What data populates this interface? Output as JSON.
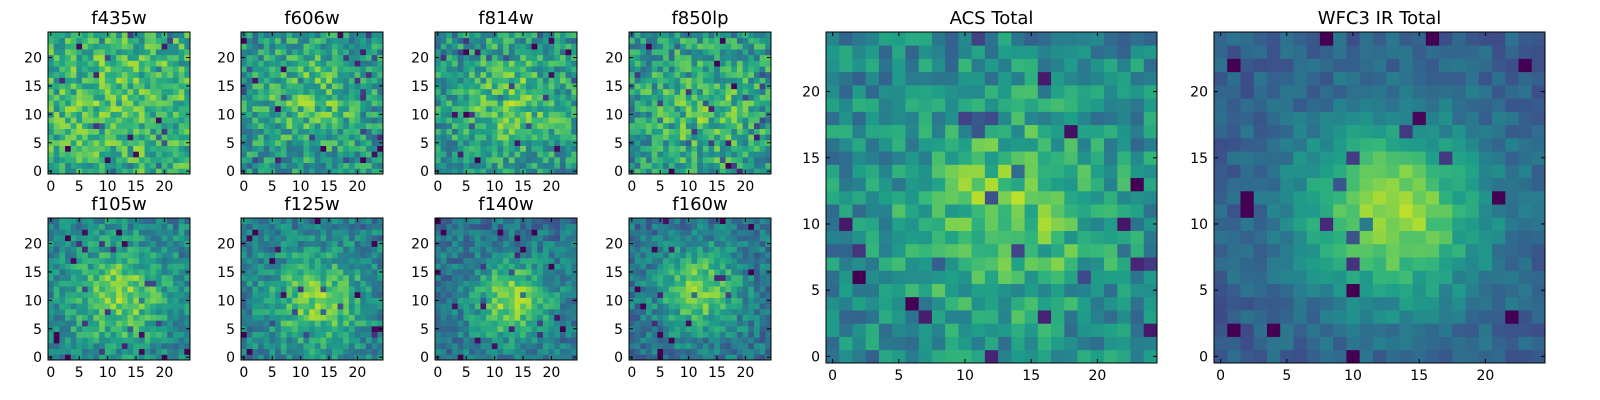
{
  "figure": {
    "title": ""
  },
  "chart_data": [
    {
      "type": "heatmap",
      "title": "f435w",
      "grid_size": 25,
      "xlim": [
        -0.5,
        24.5
      ],
      "ylim": [
        -0.5,
        24.5
      ],
      "xticks": [
        0,
        5,
        10,
        15,
        20
      ],
      "yticks": [
        0,
        5,
        10,
        15,
        20
      ],
      "colormap": "viridis",
      "value_range": [
        0,
        1
      ],
      "pattern": {
        "peak": [
          12,
          13
        ],
        "sigma": 10,
        "amplitude": 0.1,
        "base": 0.6,
        "noise": 0.2,
        "seed": 11
      }
    },
    {
      "type": "heatmap",
      "title": "f606w",
      "grid_size": 25,
      "xlim": [
        -0.5,
        24.5
      ],
      "ylim": [
        -0.5,
        24.5
      ],
      "xticks": [
        0,
        5,
        10,
        15,
        20
      ],
      "yticks": [
        0,
        5,
        10,
        15,
        20
      ],
      "colormap": "viridis",
      "value_range": [
        0,
        1
      ],
      "pattern": {
        "peak": [
          12,
          13
        ],
        "sigma": 7,
        "amplitude": 0.2,
        "base": 0.5,
        "noise": 0.2,
        "seed": 22
      }
    },
    {
      "type": "heatmap",
      "title": "f814w",
      "grid_size": 25,
      "xlim": [
        -0.5,
        24.5
      ],
      "ylim": [
        -0.5,
        24.5
      ],
      "xticks": [
        0,
        5,
        10,
        15,
        20
      ],
      "yticks": [
        0,
        5,
        10,
        15,
        20
      ],
      "colormap": "viridis",
      "value_range": [
        0,
        1
      ],
      "pattern": {
        "peak": [
          13,
          12
        ],
        "sigma": 7,
        "amplitude": 0.22,
        "base": 0.5,
        "noise": 0.2,
        "seed": 33
      }
    },
    {
      "type": "heatmap",
      "title": "f850lp",
      "grid_size": 25,
      "xlim": [
        -0.5,
        24.5
      ],
      "ylim": [
        -0.5,
        24.5
      ],
      "xticks": [
        0,
        5,
        10,
        15,
        20
      ],
      "yticks": [
        0,
        5,
        10,
        15,
        20
      ],
      "colormap": "viridis",
      "value_range": [
        0,
        1
      ],
      "pattern": {
        "peak": [
          13,
          11
        ],
        "sigma": 8,
        "amplitude": 0.18,
        "base": 0.5,
        "noise": 0.22,
        "seed": 44
      }
    },
    {
      "type": "heatmap",
      "title": "f105w",
      "grid_size": 25,
      "xlim": [
        -0.5,
        24.5
      ],
      "ylim": [
        -0.5,
        24.5
      ],
      "xticks": [
        0,
        5,
        10,
        15,
        20
      ],
      "yticks": [
        0,
        5,
        10,
        15,
        20
      ],
      "colormap": "viridis",
      "value_range": [
        0,
        1
      ],
      "pattern": {
        "peak": [
          12,
          11
        ],
        "sigma": 6,
        "amplitude": 0.35,
        "base": 0.45,
        "noise": 0.16,
        "seed": 55
      }
    },
    {
      "type": "heatmap",
      "title": "f125w",
      "grid_size": 25,
      "xlim": [
        -0.5,
        24.5
      ],
      "ylim": [
        -0.5,
        24.5
      ],
      "xticks": [
        0,
        5,
        10,
        15,
        20
      ],
      "yticks": [
        0,
        5,
        10,
        15,
        20
      ],
      "colormap": "viridis",
      "value_range": [
        0,
        1
      ],
      "pattern": {
        "peak": [
          13,
          10
        ],
        "sigma": 6,
        "amplitude": 0.35,
        "base": 0.42,
        "noise": 0.16,
        "seed": 66
      }
    },
    {
      "type": "heatmap",
      "title": "f140w",
      "grid_size": 25,
      "xlim": [
        -0.5,
        24.5
      ],
      "ylim": [
        -0.5,
        24.5
      ],
      "xticks": [
        0,
        5,
        10,
        15,
        20
      ],
      "yticks": [
        0,
        5,
        10,
        15,
        20
      ],
      "colormap": "viridis",
      "value_range": [
        0,
        1
      ],
      "pattern": {
        "peak": [
          13,
          10
        ],
        "sigma": 5,
        "amplitude": 0.42,
        "base": 0.38,
        "noise": 0.15,
        "seed": 77
      }
    },
    {
      "type": "heatmap",
      "title": "f160w",
      "grid_size": 25,
      "xlim": [
        -0.5,
        24.5
      ],
      "ylim": [
        -0.5,
        24.5
      ],
      "xticks": [
        0,
        5,
        10,
        15,
        20
      ],
      "yticks": [
        0,
        5,
        10,
        15,
        20
      ],
      "colormap": "viridis",
      "value_range": [
        0,
        1
      ],
      "pattern": {
        "peak": [
          12,
          12
        ],
        "sigma": 5,
        "amplitude": 0.42,
        "base": 0.38,
        "noise": 0.15,
        "seed": 88
      }
    },
    {
      "type": "heatmap",
      "title": "ACS Total",
      "grid_size": 25,
      "xlim": [
        -0.5,
        24.5
      ],
      "ylim": [
        -0.5,
        24.5
      ],
      "xticks": [
        0,
        5,
        10,
        15,
        20
      ],
      "yticks": [
        0,
        5,
        10,
        15,
        20
      ],
      "colormap": "viridis",
      "value_range": [
        0,
        1
      ],
      "pattern": {
        "peak": [
          13,
          11
        ],
        "sigma": 6,
        "amplitude": 0.3,
        "base": 0.45,
        "noise": 0.17,
        "seed": 99
      }
    },
    {
      "type": "heatmap",
      "title": "WFC3 IR Total",
      "grid_size": 25,
      "xlim": [
        -0.5,
        24.5
      ],
      "ylim": [
        -0.5,
        24.5
      ],
      "xticks": [
        0,
        5,
        10,
        15,
        20
      ],
      "yticks": [
        0,
        5,
        10,
        15,
        20
      ],
      "colormap": "viridis",
      "value_range": [
        0,
        1
      ],
      "pattern": {
        "peak": [
          13,
          11
        ],
        "sigma": 5,
        "amplitude": 0.55,
        "base": 0.3,
        "noise": 0.08,
        "seed": 111
      }
    }
  ]
}
